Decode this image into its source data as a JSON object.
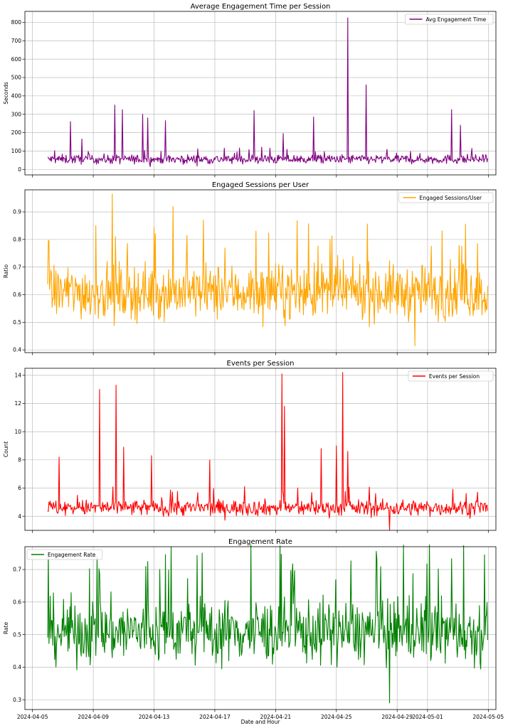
{
  "chart_data": [
    {
      "type": "line",
      "title": "Average Engagement Time per Session",
      "xlabel": "",
      "ylabel": "Seconds",
      "ylim": [
        -30,
        860
      ],
      "yticks": [
        0,
        100,
        200,
        300,
        400,
        500,
        600,
        700,
        800
      ],
      "grid": true,
      "legend": "top-right",
      "x_range": [
        "2024-04-06 00:00",
        "2024-05-04 23:00"
      ],
      "series": [
        {
          "name": "Avg Engagement Time",
          "color": "#800080",
          "baseline": 55,
          "noise": 18,
          "spikes": [
            [
              "2024-04-07 12:00",
              260
            ],
            [
              "2024-04-08 06:00",
              165
            ],
            [
              "2024-04-10 10:00",
              350
            ],
            [
              "2024-04-10 22:00",
              325
            ],
            [
              "2024-04-12 06:00",
              300
            ],
            [
              "2024-04-12 14:00",
              280
            ],
            [
              "2024-04-13 18:00",
              265
            ],
            [
              "2024-04-19 14:00",
              320
            ],
            [
              "2024-04-21 12:00",
              195
            ],
            [
              "2024-04-23 12:00",
              285
            ],
            [
              "2024-04-25 18:00",
              825
            ],
            [
              "2024-04-26 23:00",
              460
            ],
            [
              "2024-05-02 14:00",
              325
            ],
            [
              "2024-05-03 04:00",
              240
            ]
          ]
        }
      ]
    },
    {
      "type": "line",
      "title": "Engaged Sessions per User",
      "xlabel": "",
      "ylabel": "Ratio",
      "ylim": [
        0.39,
        0.98
      ],
      "yticks": [
        0.4,
        0.5,
        0.6,
        0.7,
        0.8,
        0.9
      ],
      "grid": true,
      "legend": "top-right",
      "x_range": [
        "2024-04-06 00:00",
        "2024-05-04 23:00"
      ],
      "series": [
        {
          "name": "Engaged Sessions/User",
          "color": "#FFA500",
          "baseline": 0.61,
          "noise": 0.07,
          "spikes": [
            [
              "2024-04-09 04:00",
              0.85
            ],
            [
              "2024-04-10 06:00",
              0.965
            ],
            [
              "2024-04-14 06:00",
              0.92
            ],
            [
              "2024-04-30 04:00",
              0.415
            ]
          ]
        }
      ]
    },
    {
      "type": "line",
      "title": "Events per Session",
      "xlabel": "",
      "ylabel": "Count",
      "ylim": [
        3.0,
        14.5
      ],
      "yticks": [
        4,
        6,
        8,
        10,
        12,
        14
      ],
      "grid": true,
      "legend": "top-right",
      "x_range": [
        "2024-04-06 00:00",
        "2024-05-04 23:00"
      ],
      "series": [
        {
          "name": "Events per Session",
          "color": "#FF0000",
          "baseline": 4.6,
          "noise": 0.4,
          "spikes": [
            [
              "2024-04-06 18:00",
              8.2
            ],
            [
              "2024-04-09 10:00",
              13.0
            ],
            [
              "2024-04-10 12:00",
              13.3
            ],
            [
              "2024-04-11 00:00",
              8.9
            ],
            [
              "2024-04-12 20:00",
              8.3
            ],
            [
              "2024-04-16 16:00",
              8.0
            ],
            [
              "2024-04-21 10:00",
              14.1
            ],
            [
              "2024-04-21 14:00",
              11.8
            ],
            [
              "2024-04-24 00:00",
              8.8
            ],
            [
              "2024-04-25 00:00",
              9.0
            ],
            [
              "2024-04-25 10:00",
              14.2
            ],
            [
              "2024-04-25 18:00",
              8.6
            ],
            [
              "2024-04-28 12:00",
              3.0
            ]
          ]
        }
      ]
    },
    {
      "type": "line",
      "title": "Engagement Rate",
      "xlabel": "Date and Hour",
      "ylabel": "Rate",
      "ylim": [
        0.27,
        0.77
      ],
      "yticks": [
        0.3,
        0.4,
        0.5,
        0.6,
        0.7
      ],
      "grid": true,
      "legend": "top-left",
      "x_range": [
        "2024-04-06 00:00",
        "2024-05-04 23:00"
      ],
      "xticks": [
        "2024-04-05",
        "2024-04-09",
        "2024-04-13",
        "2024-04-17",
        "2024-04-21",
        "2024-04-25",
        "2024-04-29",
        "2024-05-01",
        "2024-05-05"
      ],
      "series": [
        {
          "name": "Engagement Rate",
          "color": "#008000",
          "baseline": 0.51,
          "noise": 0.07,
          "spikes": [
            [
              "2024-04-09 06:00",
              0.74
            ],
            [
              "2024-04-28 12:00",
              0.29
            ],
            [
              "2024-05-04 18:00",
              0.745
            ]
          ]
        }
      ]
    }
  ]
}
